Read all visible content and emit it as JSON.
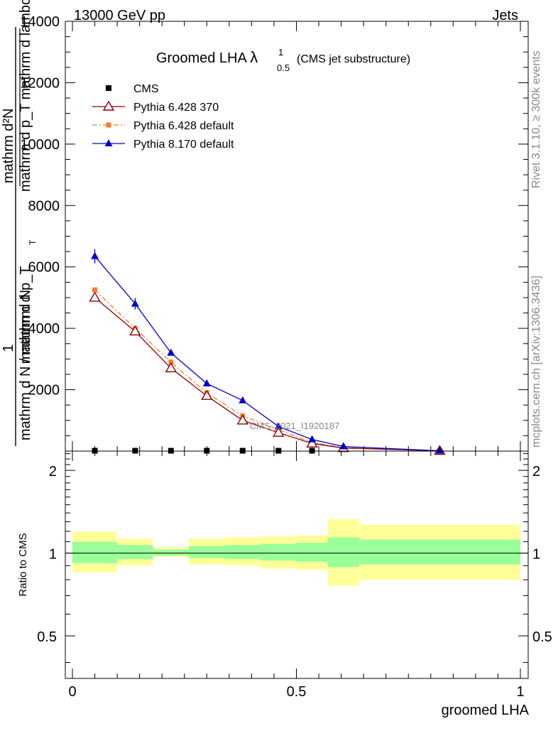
{
  "header": {
    "left": "13000 GeV pp",
    "right": "Jets",
    "title_main": "Groomed LHA ",
    "title_lambda": "λ",
    "title_sup": "1",
    "title_sub": "0.5",
    "title_note": "(CMS jet substructure)"
  },
  "side": {
    "rivet": "Rivet 3.1.10, ≥ 300k events",
    "mcplots": "mcplots.cern.ch [arXiv:1306.3436]"
  },
  "watermark": "CMS_2021_I1920187",
  "ylabel_main": {
    "one": "1",
    "frac_num": "mathrm d N",
    "frac_den": "mathrm d N / mathrm d p_T",
    "ratio_num": "mathrm d²N",
    "ratio_den": "mathrm d p_T mathrm d lambda",
    "sub_t": "T"
  },
  "ylabel_ratio": "Ratio to CMS",
  "xlabel": "groomed LHA",
  "legend": [
    {
      "label": "CMS",
      "color": "#000000",
      "marker": "square"
    },
    {
      "label": "Pythia 6.428 370",
      "color": "#8b0000",
      "marker": "triangle-open"
    },
    {
      "label": "Pythia 6.428 default",
      "color": "#f07f30",
      "marker": "square-small"
    },
    {
      "label": "Pythia 8.170 default",
      "color": "#0000cc",
      "marker": "triangle"
    }
  ],
  "chart_data": [
    {
      "type": "line",
      "panel": "main",
      "xlim": [
        0,
        1
      ],
      "ylim": [
        0,
        14000
      ],
      "x_ticks": [
        0,
        0.5,
        1
      ],
      "y_ticks": [
        2000,
        4000,
        6000,
        8000,
        10000,
        12000,
        14000
      ],
      "y_tick_labels": [
        "2000",
        "4000",
        "6000",
        "8000",
        "10000",
        "12000",
        "14000"
      ],
      "series": [
        {
          "name": "CMS",
          "x": [
            0.05,
            0.14,
            0.22,
            0.3,
            0.38,
            0.46,
            0.535
          ],
          "y": [
            12,
            12,
            12,
            12,
            12,
            12,
            12
          ]
        },
        {
          "name": "Pythia 6.428 370",
          "x": [
            0.05,
            0.14,
            0.22,
            0.3,
            0.38,
            0.46,
            0.535,
            0.605,
            0.82
          ],
          "y": [
            5000,
            3900,
            2700,
            1800,
            1000,
            600,
            250,
            100,
            10
          ]
        },
        {
          "name": "Pythia 6.428 default",
          "x": [
            0.05,
            0.14,
            0.22,
            0.3,
            0.38,
            0.46,
            0.535,
            0.605,
            0.82
          ],
          "y": [
            5250,
            4000,
            2900,
            1900,
            1150,
            700,
            280,
            110,
            10
          ]
        },
        {
          "name": "Pythia 8.170 default",
          "x": [
            0.05,
            0.14,
            0.22,
            0.3,
            0.38,
            0.46,
            0.535,
            0.605,
            0.82
          ],
          "y": [
            6350,
            4800,
            3200,
            2200,
            1650,
            800,
            380,
            150,
            10
          ]
        }
      ]
    },
    {
      "type": "area",
      "panel": "ratio",
      "xlim": [
        0,
        1
      ],
      "ylim": [
        0.35,
        2.35
      ],
      "y_scale": "log",
      "y_ticks": [
        0.5,
        1,
        2
      ],
      "y_tick_labels": [
        "0.5",
        "1",
        "2"
      ],
      "x_ticks": [
        0,
        0.5,
        1
      ],
      "x_tick_labels": [
        "0",
        "0.5",
        "1"
      ],
      "bins": [
        {
          "lo": 0.0,
          "hi": 0.1,
          "inner": [
            0.92,
            1.1
          ],
          "outer": [
            0.85,
            1.2
          ]
        },
        {
          "lo": 0.1,
          "hi": 0.18,
          "inner": [
            0.95,
            1.07
          ],
          "outer": [
            0.9,
            1.13
          ]
        },
        {
          "lo": 0.18,
          "hi": 0.26,
          "inner": [
            0.98,
            1.03
          ],
          "outer": [
            0.97,
            1.05
          ]
        },
        {
          "lo": 0.26,
          "hi": 0.34,
          "inner": [
            0.96,
            1.06
          ],
          "outer": [
            0.91,
            1.13
          ]
        },
        {
          "lo": 0.34,
          "hi": 0.42,
          "inner": [
            0.95,
            1.07
          ],
          "outer": [
            0.9,
            1.14
          ]
        },
        {
          "lo": 0.42,
          "hi": 0.5,
          "inner": [
            0.94,
            1.08
          ],
          "outer": [
            0.88,
            1.15
          ]
        },
        {
          "lo": 0.5,
          "hi": 0.57,
          "inner": [
            0.93,
            1.09
          ],
          "outer": [
            0.87,
            1.16
          ]
        },
        {
          "lo": 0.57,
          "hi": 0.64,
          "inner": [
            0.89,
            1.14
          ],
          "outer": [
            0.76,
            1.33
          ]
        },
        {
          "lo": 0.64,
          "hi": 1.0,
          "inner": [
            0.91,
            1.12
          ],
          "outer": [
            0.8,
            1.27
          ]
        }
      ],
      "reference": 1
    }
  ],
  "colors": {
    "inner_band": "#99ff99",
    "outer_band": "#ffff99"
  }
}
